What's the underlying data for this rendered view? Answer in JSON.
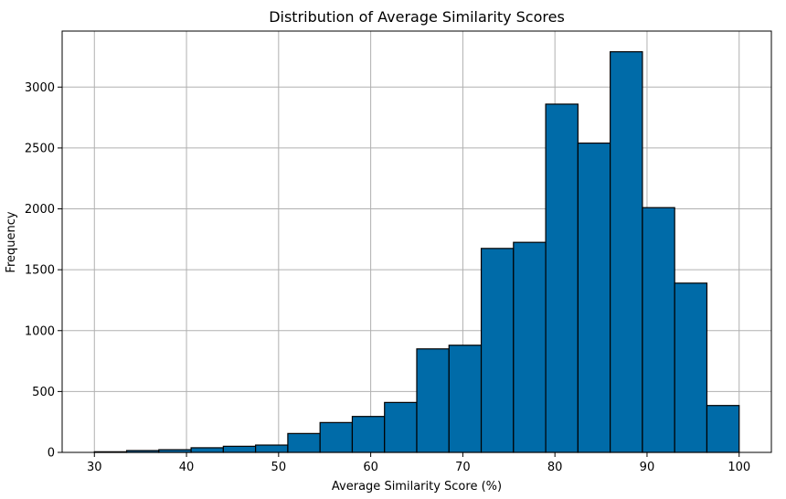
{
  "chart_data": {
    "type": "bar",
    "title": "Distribution of Average Similarity Scores",
    "xlabel": "Average Similarity Score (%)",
    "ylabel": "Frequency",
    "xlim": [
      26.5,
      103.5
    ],
    "ylim": [
      0,
      3460
    ],
    "xticks": [
      30,
      40,
      50,
      60,
      70,
      80,
      90,
      100
    ],
    "yticks": [
      0,
      500,
      1000,
      1500,
      2000,
      2500,
      3000
    ],
    "grid": true,
    "bar_color": "#006BA8",
    "bin_edges": [
      30,
      33.5,
      37,
      40.5,
      44,
      47.5,
      51,
      54.5,
      58,
      61.5,
      65,
      68.5,
      72,
      75.5,
      79,
      82.5,
      86,
      89.5,
      93,
      96.5,
      100
    ],
    "values": [
      5,
      15,
      22,
      38,
      50,
      60,
      155,
      245,
      295,
      410,
      850,
      880,
      1675,
      1725,
      2860,
      2540,
      3290,
      2010,
      1390,
      385
    ]
  }
}
